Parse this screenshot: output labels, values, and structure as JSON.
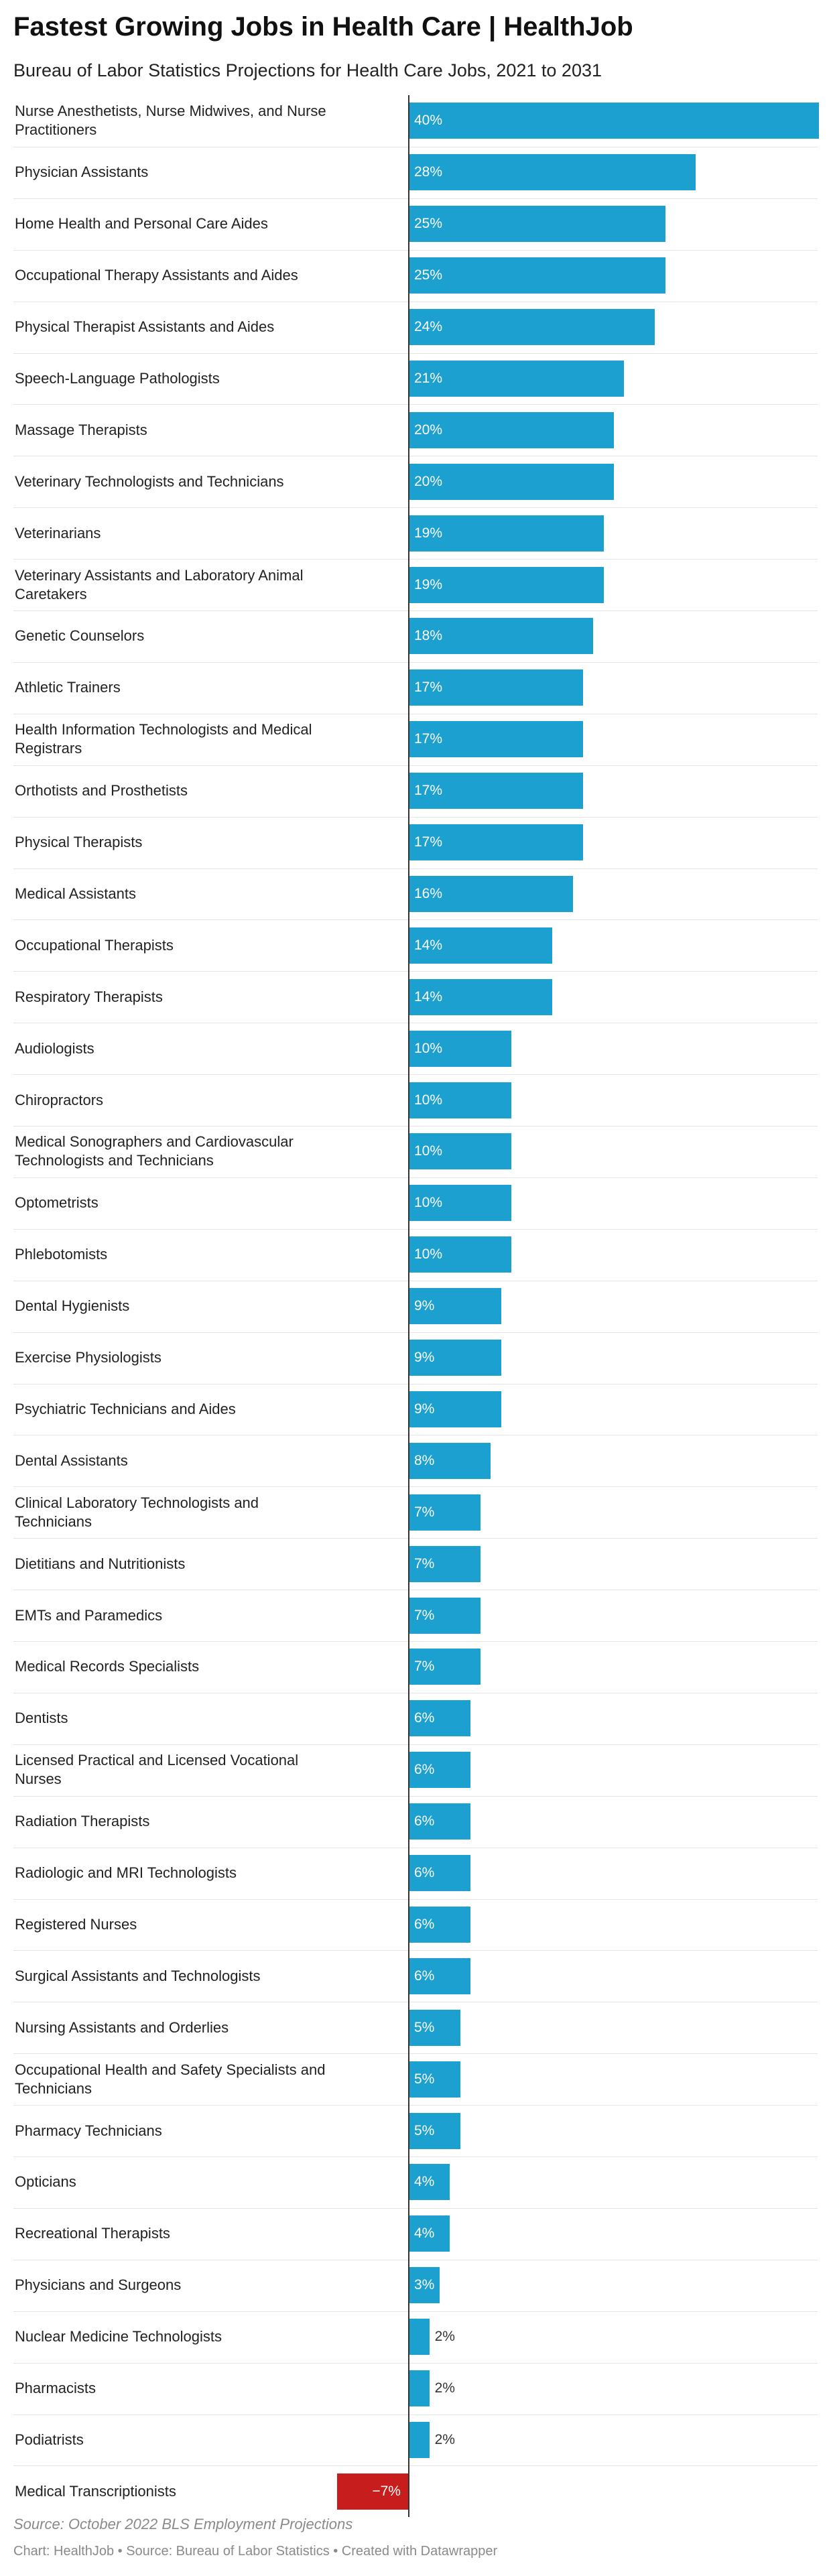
{
  "header": {
    "title": "Fastest Growing Jobs in Health Care |  HealthJob",
    "subtitle": "Bureau of Labor Statistics Projections for Health Care Jobs, 2021 to 2031"
  },
  "footer": {
    "source": "Source: October 2022 BLS Employment Projections",
    "credit": "Chart: HealthJob • Source: Bureau of Labor Statistics • Created with Datawrapper"
  },
  "colors": {
    "positive": "#1ba0cf",
    "negative": "#c71e1d"
  },
  "chart_data": {
    "type": "bar",
    "orientation": "horizontal",
    "value_suffix": "%",
    "xlim": [
      -7,
      40
    ],
    "categories": [
      "Nurse Anesthetists, Nurse Midwives, and Nurse Practitioners",
      "Physician Assistants",
      "Home Health and Personal Care Aides",
      "Occupational Therapy Assistants and Aides",
      "Physical Therapist Assistants and Aides",
      "Speech-Language Pathologists",
      "Massage Therapists",
      "Veterinary Technologists and Technicians",
      "Veterinarians",
      "Veterinary Assistants and Laboratory Animal Caretakers",
      "Genetic Counselors",
      "Athletic Trainers",
      "Health Information Technologists and Medical Registrars",
      "Orthotists and Prosthetists",
      "Physical Therapists",
      "Medical Assistants",
      "Occupational Therapists",
      "Respiratory Therapists",
      "Audiologists",
      "Chiropractors",
      "Medical Sonographers and Cardiovascular Technologists and Technicians",
      "Optometrists",
      "Phlebotomists",
      "Dental Hygienists",
      "Exercise Physiologists",
      "Psychiatric Technicians and Aides",
      "Dental Assistants",
      "Clinical Laboratory Technologists and Technicians",
      "Dietitians and Nutritionists",
      "EMTs and Paramedics",
      "Medical Records Specialists",
      "Dentists",
      "Licensed Practical and Licensed Vocational Nurses",
      "Radiation Therapists",
      "Radiologic and MRI Technologists",
      "Registered Nurses",
      "Surgical Assistants and Technologists",
      "Nursing Assistants and Orderlies",
      "Occupational Health and Safety Specialists and Technicians",
      "Pharmacy Technicians",
      "Opticians",
      "Recreational Therapists",
      "Physicians and Surgeons",
      "Nuclear Medicine Technologists",
      "Pharmacists",
      "Podiatrists",
      "Medical Transcriptionists"
    ],
    "values": [
      40,
      28,
      25,
      25,
      24,
      21,
      20,
      20,
      19,
      19,
      18,
      17,
      17,
      17,
      17,
      16,
      14,
      14,
      10,
      10,
      10,
      10,
      10,
      9,
      9,
      9,
      8,
      7,
      7,
      7,
      7,
      6,
      6,
      6,
      6,
      6,
      6,
      5,
      5,
      5,
      4,
      4,
      3,
      2,
      2,
      2,
      -7
    ],
    "value_labels": [
      "40%",
      "28%",
      "25%",
      "25%",
      "24%",
      "21%",
      "20%",
      "20%",
      "19%",
      "19%",
      "18%",
      "17%",
      "17%",
      "17%",
      "17%",
      "16%",
      "14%",
      "14%",
      "10%",
      "10%",
      "10%",
      "10%",
      "10%",
      "9%",
      "9%",
      "9%",
      "8%",
      "7%",
      "7%",
      "7%",
      "7%",
      "6%",
      "6%",
      "6%",
      "6%",
      "6%",
      "6%",
      "5%",
      "5%",
      "5%",
      "4%",
      "4%",
      "3%",
      "2%",
      "2%",
      "2%",
      "−7%"
    ]
  }
}
